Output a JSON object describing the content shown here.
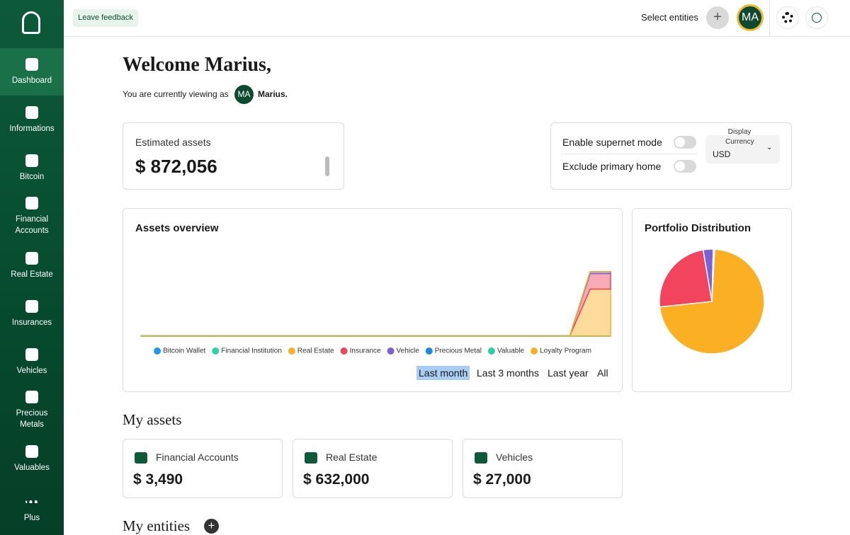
{
  "sidebar": {
    "items": [
      "Dashboard",
      "Informations",
      "Bitcoin",
      "Financial Accounts",
      "Real Estate",
      "Insurances",
      "Vehicles",
      "Precious Metals",
      "Valuables",
      "Plus"
    ]
  },
  "topbar": {
    "feedback": "Leave feedback",
    "select_entities": "Select entities",
    "avatar": "MA"
  },
  "welcome": {
    "title": "Welcome Marius,",
    "viewing": "You are currently viewing as",
    "avatar": "MA",
    "name": "Marius."
  },
  "estimated": {
    "label": "Estimated assets",
    "value": "$ 872,056"
  },
  "settings": {
    "supernet": "Enable supernet mode",
    "primary_home": "Exclude primary home",
    "currency_label": "Display Currency",
    "currency": "USD"
  },
  "chart_data": [
    {
      "type": "area",
      "title": "Assets overview",
      "stacked": true,
      "categories": [
        null,
        null,
        null,
        null,
        null,
        null,
        null,
        null,
        null,
        null,
        null,
        null,
        null,
        null,
        null,
        null,
        null,
        null,
        null,
        null,
        null,
        null,
        null,
        null
      ],
      "ylim": [
        0,
        880000
      ],
      "series": [
        {
          "name": "Bitcoin Wallet",
          "color": "#2196f3",
          "values": [
            0,
            0,
            0,
            0,
            0,
            0,
            0,
            0,
            0,
            0,
            0,
            0,
            0,
            0,
            0,
            0,
            0,
            0,
            0,
            0,
            0,
            0,
            0,
            0
          ]
        },
        {
          "name": "Financial Institution",
          "color": "#2ed3a4",
          "values": [
            3490,
            3490,
            3490,
            3490,
            3490,
            3490,
            3490,
            3490,
            3490,
            3490,
            3490,
            3490,
            3490,
            3490,
            3490,
            3490,
            3490,
            3490,
            3490,
            3490,
            3490,
            3490,
            3490,
            3490
          ]
        },
        {
          "name": "Real Estate",
          "color": "#fbb024",
          "values": [
            0,
            0,
            0,
            0,
            0,
            0,
            0,
            0,
            0,
            0,
            0,
            0,
            0,
            0,
            0,
            0,
            0,
            0,
            0,
            0,
            0,
            0,
            632000,
            632000
          ]
        },
        {
          "name": "Insurance",
          "color": "#f2445c",
          "values": [
            0,
            0,
            0,
            0,
            0,
            0,
            0,
            0,
            0,
            0,
            0,
            0,
            0,
            0,
            0,
            0,
            0,
            0,
            0,
            0,
            0,
            0,
            209566,
            209566
          ]
        },
        {
          "name": "Vehicle",
          "color": "#7b61d9",
          "values": [
            0,
            0,
            0,
            0,
            0,
            0,
            0,
            0,
            0,
            0,
            0,
            0,
            0,
            0,
            0,
            0,
            0,
            0,
            0,
            0,
            0,
            0,
            27000,
            27000
          ]
        },
        {
          "name": "Precious Metal",
          "color": "#1e88e5",
          "values": [
            0,
            0,
            0,
            0,
            0,
            0,
            0,
            0,
            0,
            0,
            0,
            0,
            0,
            0,
            0,
            0,
            0,
            0,
            0,
            0,
            0,
            0,
            0,
            0
          ]
        },
        {
          "name": "Valuable",
          "color": "#2ed0a0",
          "values": [
            0,
            0,
            0,
            0,
            0,
            0,
            0,
            0,
            0,
            0,
            0,
            0,
            0,
            0,
            0,
            0,
            0,
            0,
            0,
            0,
            0,
            0,
            0,
            0
          ]
        },
        {
          "name": "Loyalty Program",
          "color": "#fbb024",
          "values": [
            0,
            0,
            0,
            0,
            0,
            0,
            0,
            0,
            0,
            0,
            0,
            0,
            0,
            0,
            0,
            0,
            0,
            0,
            0,
            0,
            0,
            0,
            0,
            0
          ]
        }
      ]
    },
    {
      "type": "pie",
      "title": "Portfolio Distribution",
      "values": [
        72.5,
        24,
        3.1,
        0.4
      ],
      "colors": [
        "#fbb024",
        "#f2445c",
        "#7b61d9",
        "#2196f3"
      ]
    }
  ],
  "ranges": [
    "Last month",
    "Last 3 months",
    "Last year",
    "All"
  ],
  "my_assets": {
    "title": "My assets",
    "cards": [
      {
        "label": "Financial Accounts",
        "value": "$ 3,490"
      },
      {
        "label": "Real Estate",
        "value": "$ 632,000"
      },
      {
        "label": "Vehicles",
        "value": "$ 27,000"
      }
    ]
  },
  "my_entities": "My entities"
}
